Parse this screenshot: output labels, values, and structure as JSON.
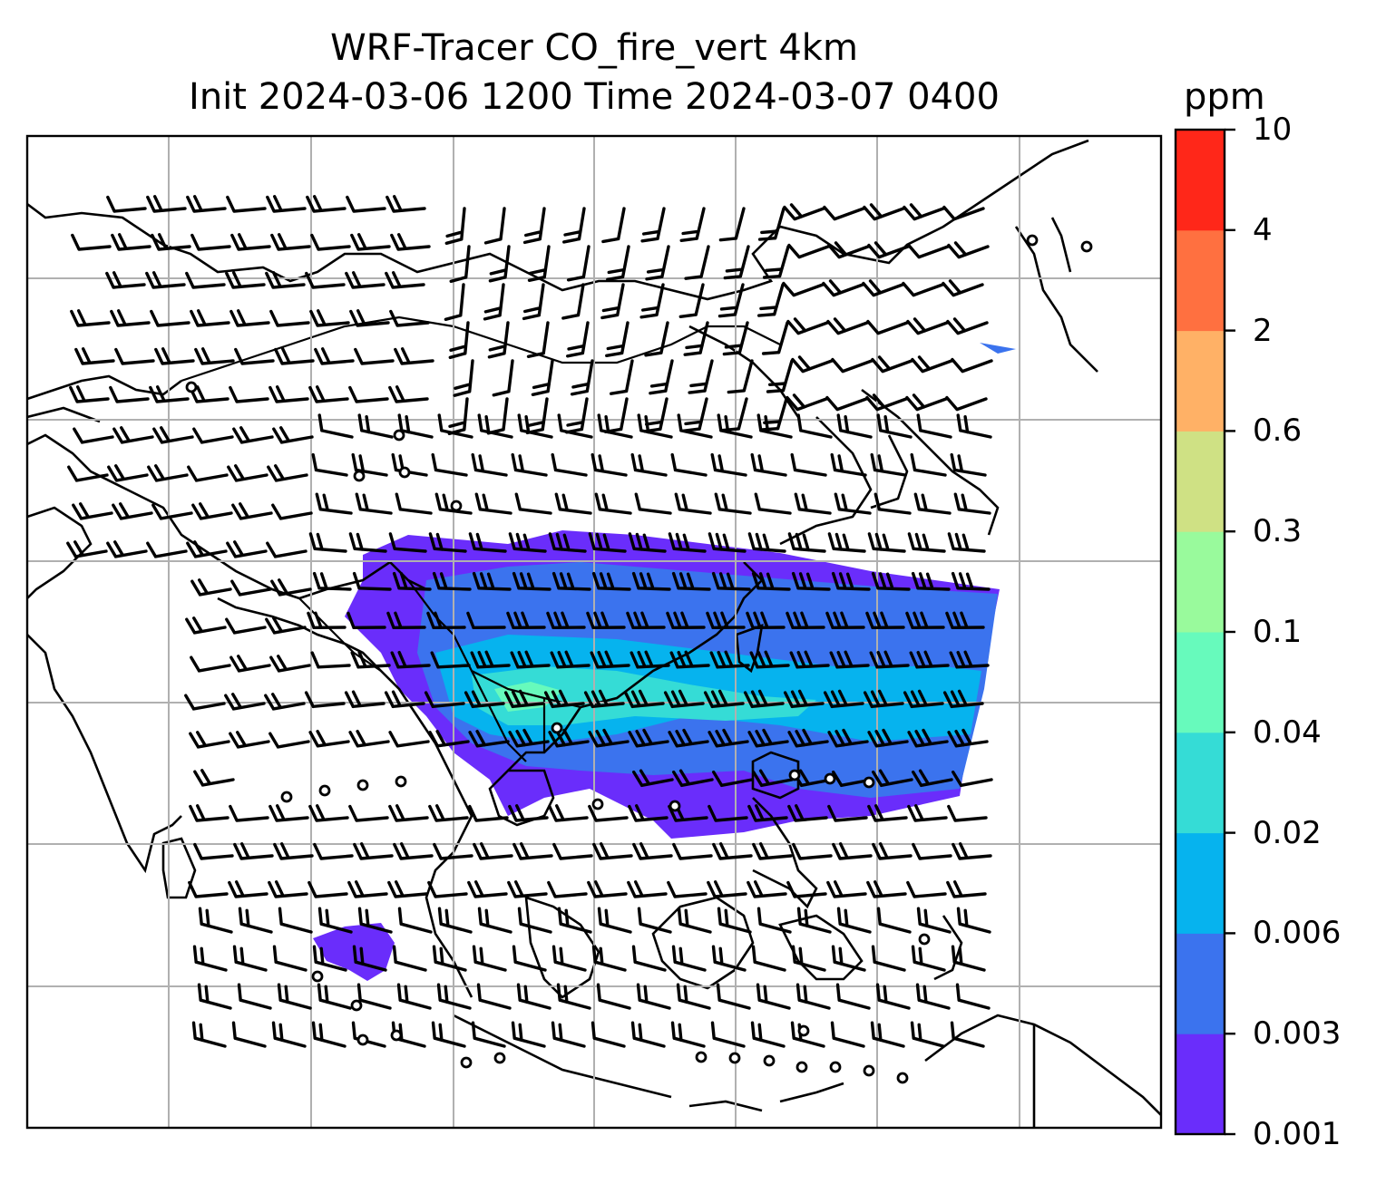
{
  "title": {
    "line1": "WRF-Tracer CO_fire_vert 4km",
    "line2": "Init 2024-03-06 1200 Time 2024-03-07 0400"
  },
  "colorbar": {
    "unit": "ppm",
    "levels": [
      "0.001",
      "0.003",
      "0.006",
      "0.02",
      "0.04",
      "0.1",
      "0.3",
      "0.6",
      "2",
      "4",
      "10"
    ],
    "colors": [
      "#6a2dfb",
      "#3b73ee",
      "#06b3ee",
      "#35dcd6",
      "#67fabc",
      "#99fa9c",
      "#cfe184",
      "#ffb166",
      "#ff7040",
      "#ff2719"
    ]
  },
  "plume_colors": {
    "outer": "#6a2dfb",
    "mid": "#3b73ee",
    "inner": "#06b3ee",
    "core": "#35dcd6",
    "peak": "#67fabc"
  },
  "calm_marker_icon": "circle-icon",
  "wind_barb_icon": "wind-barb-icon"
}
